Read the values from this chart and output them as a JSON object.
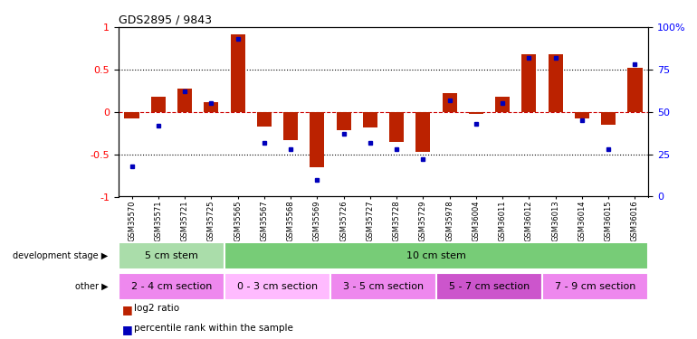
{
  "title": "GDS2895 / 9843",
  "categories": [
    "GSM35570",
    "GSM35571",
    "GSM35721",
    "GSM35725",
    "GSM35565",
    "GSM35567",
    "GSM35568",
    "GSM35569",
    "GSM35726",
    "GSM35727",
    "GSM35728",
    "GSM35729",
    "GSM35978",
    "GSM36004",
    "GSM36011",
    "GSM36012",
    "GSM36013",
    "GSM36014",
    "GSM36015",
    "GSM36016"
  ],
  "log2_ratio": [
    -0.08,
    0.18,
    0.27,
    0.12,
    0.92,
    -0.17,
    -0.33,
    -0.65,
    -0.22,
    -0.18,
    -0.35,
    -0.47,
    0.22,
    -0.02,
    0.18,
    0.68,
    0.68,
    -0.08,
    -0.15,
    0.52
  ],
  "percentile": [
    18,
    42,
    62,
    55,
    93,
    32,
    28,
    10,
    37,
    32,
    28,
    22,
    57,
    43,
    55,
    82,
    82,
    45,
    28,
    78
  ],
  "dev_stage_groups": [
    {
      "label": "5 cm stem",
      "start": 0,
      "end": 4,
      "color": "#aaddaa"
    },
    {
      "label": "10 cm stem",
      "start": 4,
      "end": 20,
      "color": "#77cc77"
    }
  ],
  "other_groups": [
    {
      "label": "2 - 4 cm section",
      "start": 0,
      "end": 4,
      "color": "#ee88ee"
    },
    {
      "label": "0 - 3 cm section",
      "start": 4,
      "end": 8,
      "color": "#ffbbff"
    },
    {
      "label": "3 - 5 cm section",
      "start": 8,
      "end": 12,
      "color": "#ee88ee"
    },
    {
      "label": "5 - 7 cm section",
      "start": 12,
      "end": 16,
      "color": "#cc55cc"
    },
    {
      "label": "7 - 9 cm section",
      "start": 16,
      "end": 20,
      "color": "#ee88ee"
    }
  ],
  "bar_color": "#bb2200",
  "dot_color": "#0000bb",
  "zero_line_color": "#cc0000",
  "ylim_left": [
    -1,
    1
  ],
  "ylim_right": [
    0,
    100
  ],
  "left_yticks": [
    -1,
    -0.5,
    0,
    0.5,
    1
  ],
  "right_yticks": [
    0,
    25,
    50,
    75,
    100
  ],
  "dotted_lines": [
    0.5,
    -0.5
  ],
  "bar_width": 0.55
}
